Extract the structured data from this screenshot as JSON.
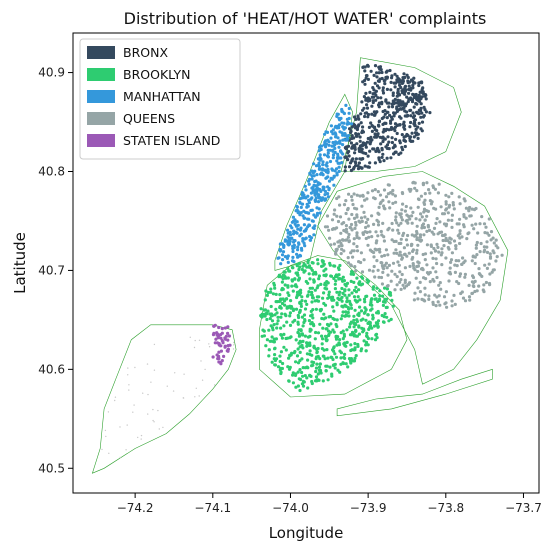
{
  "chart_data": {
    "type": "scatter",
    "title": "Distribution of 'HEAT/HOT WATER' complaints",
    "xlabel": "Longitude",
    "ylabel": "Latitude",
    "xlim": [
      -74.28,
      -73.68
    ],
    "ylim": [
      40.475,
      40.94
    ],
    "xticks": [
      -74.2,
      -74.1,
      -74.0,
      -73.9,
      -73.8,
      -73.7
    ],
    "xtick_labels": [
      "−74.2",
      "−74.1",
      "−74.0",
      "−73.9",
      "−73.8",
      "−73.7"
    ],
    "yticks": [
      40.5,
      40.6,
      40.7,
      40.8,
      40.9
    ],
    "ytick_labels": [
      "40.5",
      "40.6",
      "40.7",
      "40.8",
      "40.9"
    ],
    "grid": false,
    "legend_position": "top-left",
    "boundary_color": "#2ca02c",
    "series": [
      {
        "name": "BRONX",
        "color": "#34495e",
        "polygon": [
          [
            -73.93,
            40.8
          ],
          [
            -73.93,
            40.84
          ],
          [
            -73.905,
            40.875
          ],
          [
            -73.91,
            40.91
          ],
          [
            -73.87,
            40.905
          ],
          [
            -73.85,
            40.898
          ],
          [
            -73.83,
            40.89
          ],
          [
            -73.82,
            40.86
          ],
          [
            -73.835,
            40.83
          ],
          [
            -73.86,
            40.815
          ],
          [
            -73.89,
            40.805
          ]
        ]
      },
      {
        "name": "BROOKLYN",
        "color": "#2ecc71",
        "polygon": [
          [
            -74.03,
            40.685
          ],
          [
            -74.0,
            40.705
          ],
          [
            -73.97,
            40.712
          ],
          [
            -73.94,
            40.708
          ],
          [
            -73.92,
            40.7
          ],
          [
            -73.89,
            40.688
          ],
          [
            -73.87,
            40.68
          ],
          [
            -73.86,
            40.66
          ],
          [
            -73.88,
            40.64
          ],
          [
            -73.9,
            40.62
          ],
          [
            -73.93,
            40.6
          ],
          [
            -73.96,
            40.585
          ],
          [
            -73.99,
            40.578
          ],
          [
            -74.02,
            40.6
          ],
          [
            -74.035,
            40.625
          ],
          [
            -74.04,
            40.655
          ]
        ]
      },
      {
        "name": "MANHATTAN",
        "color": "#3498db",
        "polygon": [
          [
            -74.015,
            40.705
          ],
          [
            -73.99,
            40.71
          ],
          [
            -73.97,
            40.735
          ],
          [
            -73.96,
            40.76
          ],
          [
            -73.94,
            40.79
          ],
          [
            -73.93,
            40.82
          ],
          [
            -73.92,
            40.852
          ],
          [
            -73.925,
            40.87
          ],
          [
            -73.94,
            40.86
          ],
          [
            -73.955,
            40.84
          ],
          [
            -73.975,
            40.8
          ],
          [
            -73.99,
            40.77
          ],
          [
            -74.005,
            40.74
          ],
          [
            -74.02,
            40.715
          ]
        ]
      },
      {
        "name": "QUEENS",
        "color": "#95a5a6",
        "polygon": [
          [
            -73.96,
            40.745
          ],
          [
            -73.94,
            40.775
          ],
          [
            -73.9,
            40.785
          ],
          [
            -73.85,
            40.79
          ],
          [
            -73.81,
            40.79
          ],
          [
            -73.78,
            40.775
          ],
          [
            -73.745,
            40.755
          ],
          [
            -73.725,
            40.72
          ],
          [
            -73.74,
            40.685
          ],
          [
            -73.77,
            40.665
          ],
          [
            -73.8,
            40.66
          ],
          [
            -73.84,
            40.67
          ],
          [
            -73.87,
            40.68
          ],
          [
            -73.92,
            40.7
          ],
          [
            -73.94,
            40.71
          ]
        ]
      },
      {
        "name": "STATEN ISLAND",
        "color": "#9b59b6",
        "polygon": [
          [
            -74.1,
            40.645
          ],
          [
            -74.08,
            40.645
          ],
          [
            -74.075,
            40.62
          ],
          [
            -74.09,
            40.605
          ],
          [
            -74.1,
            40.61
          ]
        ]
      }
    ]
  }
}
